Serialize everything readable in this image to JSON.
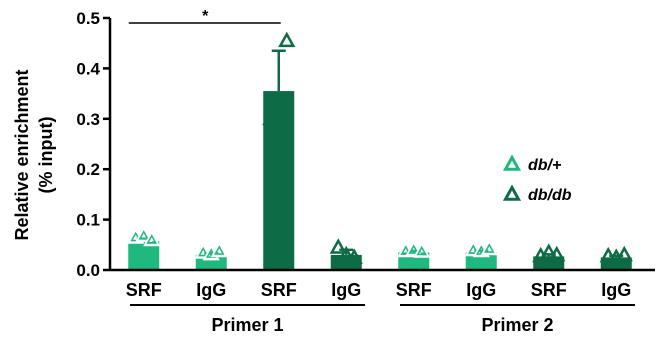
{
  "chart_data": {
    "type": "bar",
    "ylabel_lines": [
      "Relative enrichment",
      "(% input)"
    ],
    "ylim": [
      0,
      0.5
    ],
    "yticks": [
      "0.0",
      "0.1",
      "0.2",
      "0.3",
      "0.4",
      "0.5"
    ],
    "categories": [
      "SRF",
      "IgG",
      "SRF",
      "IgG",
      "SRF",
      "IgG",
      "SRF",
      "IgG"
    ],
    "bar_series": [
      "db/+",
      "db/+",
      "db/db",
      "db/db",
      "db/+",
      "db/+",
      "db/db",
      "db/db"
    ],
    "values": [
      0.057,
      0.03,
      0.355,
      0.03,
      0.035,
      0.035,
      0.027,
      0.025
    ],
    "errors": [
      0.005,
      0.003,
      0.08,
      0.01,
      0.003,
      0.003,
      0.004,
      0.003
    ],
    "points": [
      [
        0.065,
        0.068,
        0.06
      ],
      [
        0.035,
        0.032,
        0.038
      ],
      [
        0.3,
        0.308,
        0.455
      ],
      [
        0.045,
        0.03,
        0.025
      ],
      [
        0.038,
        0.04,
        0.037
      ],
      [
        0.04,
        0.038,
        0.042
      ],
      [
        0.028,
        0.035,
        0.03
      ],
      [
        0.028,
        0.025,
        0.03
      ]
    ],
    "groups": [
      {
        "label": "Primer 1",
        "start": 0,
        "end": 3
      },
      {
        "label": "Primer 2",
        "start": 4,
        "end": 7
      }
    ],
    "significance": {
      "label": "*",
      "from": 0,
      "to": 2,
      "y": 0.49
    },
    "legend": [
      {
        "name": "db/+",
        "color": "#1fb97f"
      },
      {
        "name": "db/db",
        "color": "#0d6b45"
      }
    ],
    "legend_position": "right",
    "colors": {
      "db/+": "#1fb97f",
      "db/db": "#0d6b45"
    }
  }
}
